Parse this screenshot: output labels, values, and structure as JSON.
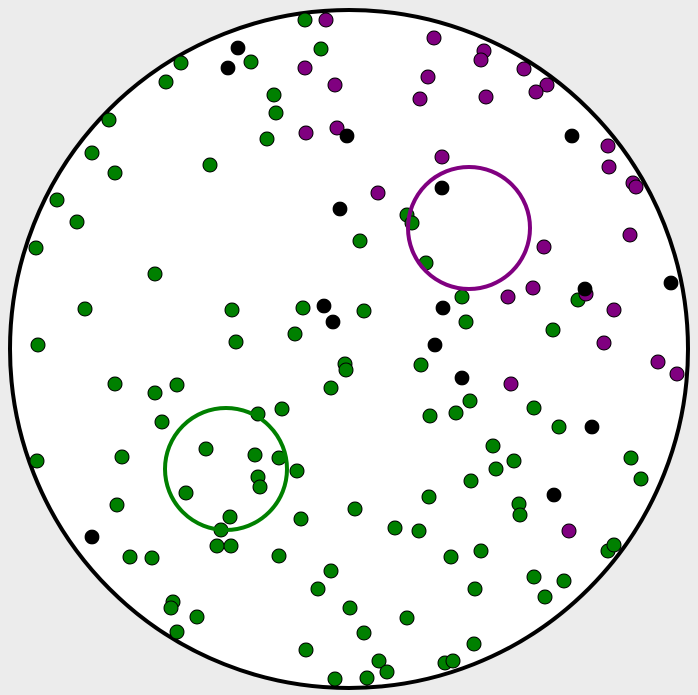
{
  "colors": {
    "background": "#ececec",
    "disc_fill": "#ffffff",
    "disc_stroke": "#000000",
    "green": "#008000",
    "purple": "#800080",
    "black": "#000000"
  },
  "rings": [
    {
      "name": "purple-ring",
      "color": "purple"
    },
    {
      "name": "green-ring",
      "color": "green"
    }
  ],
  "point_groups": {
    "green": 122,
    "purple": 36,
    "black": 20
  }
}
